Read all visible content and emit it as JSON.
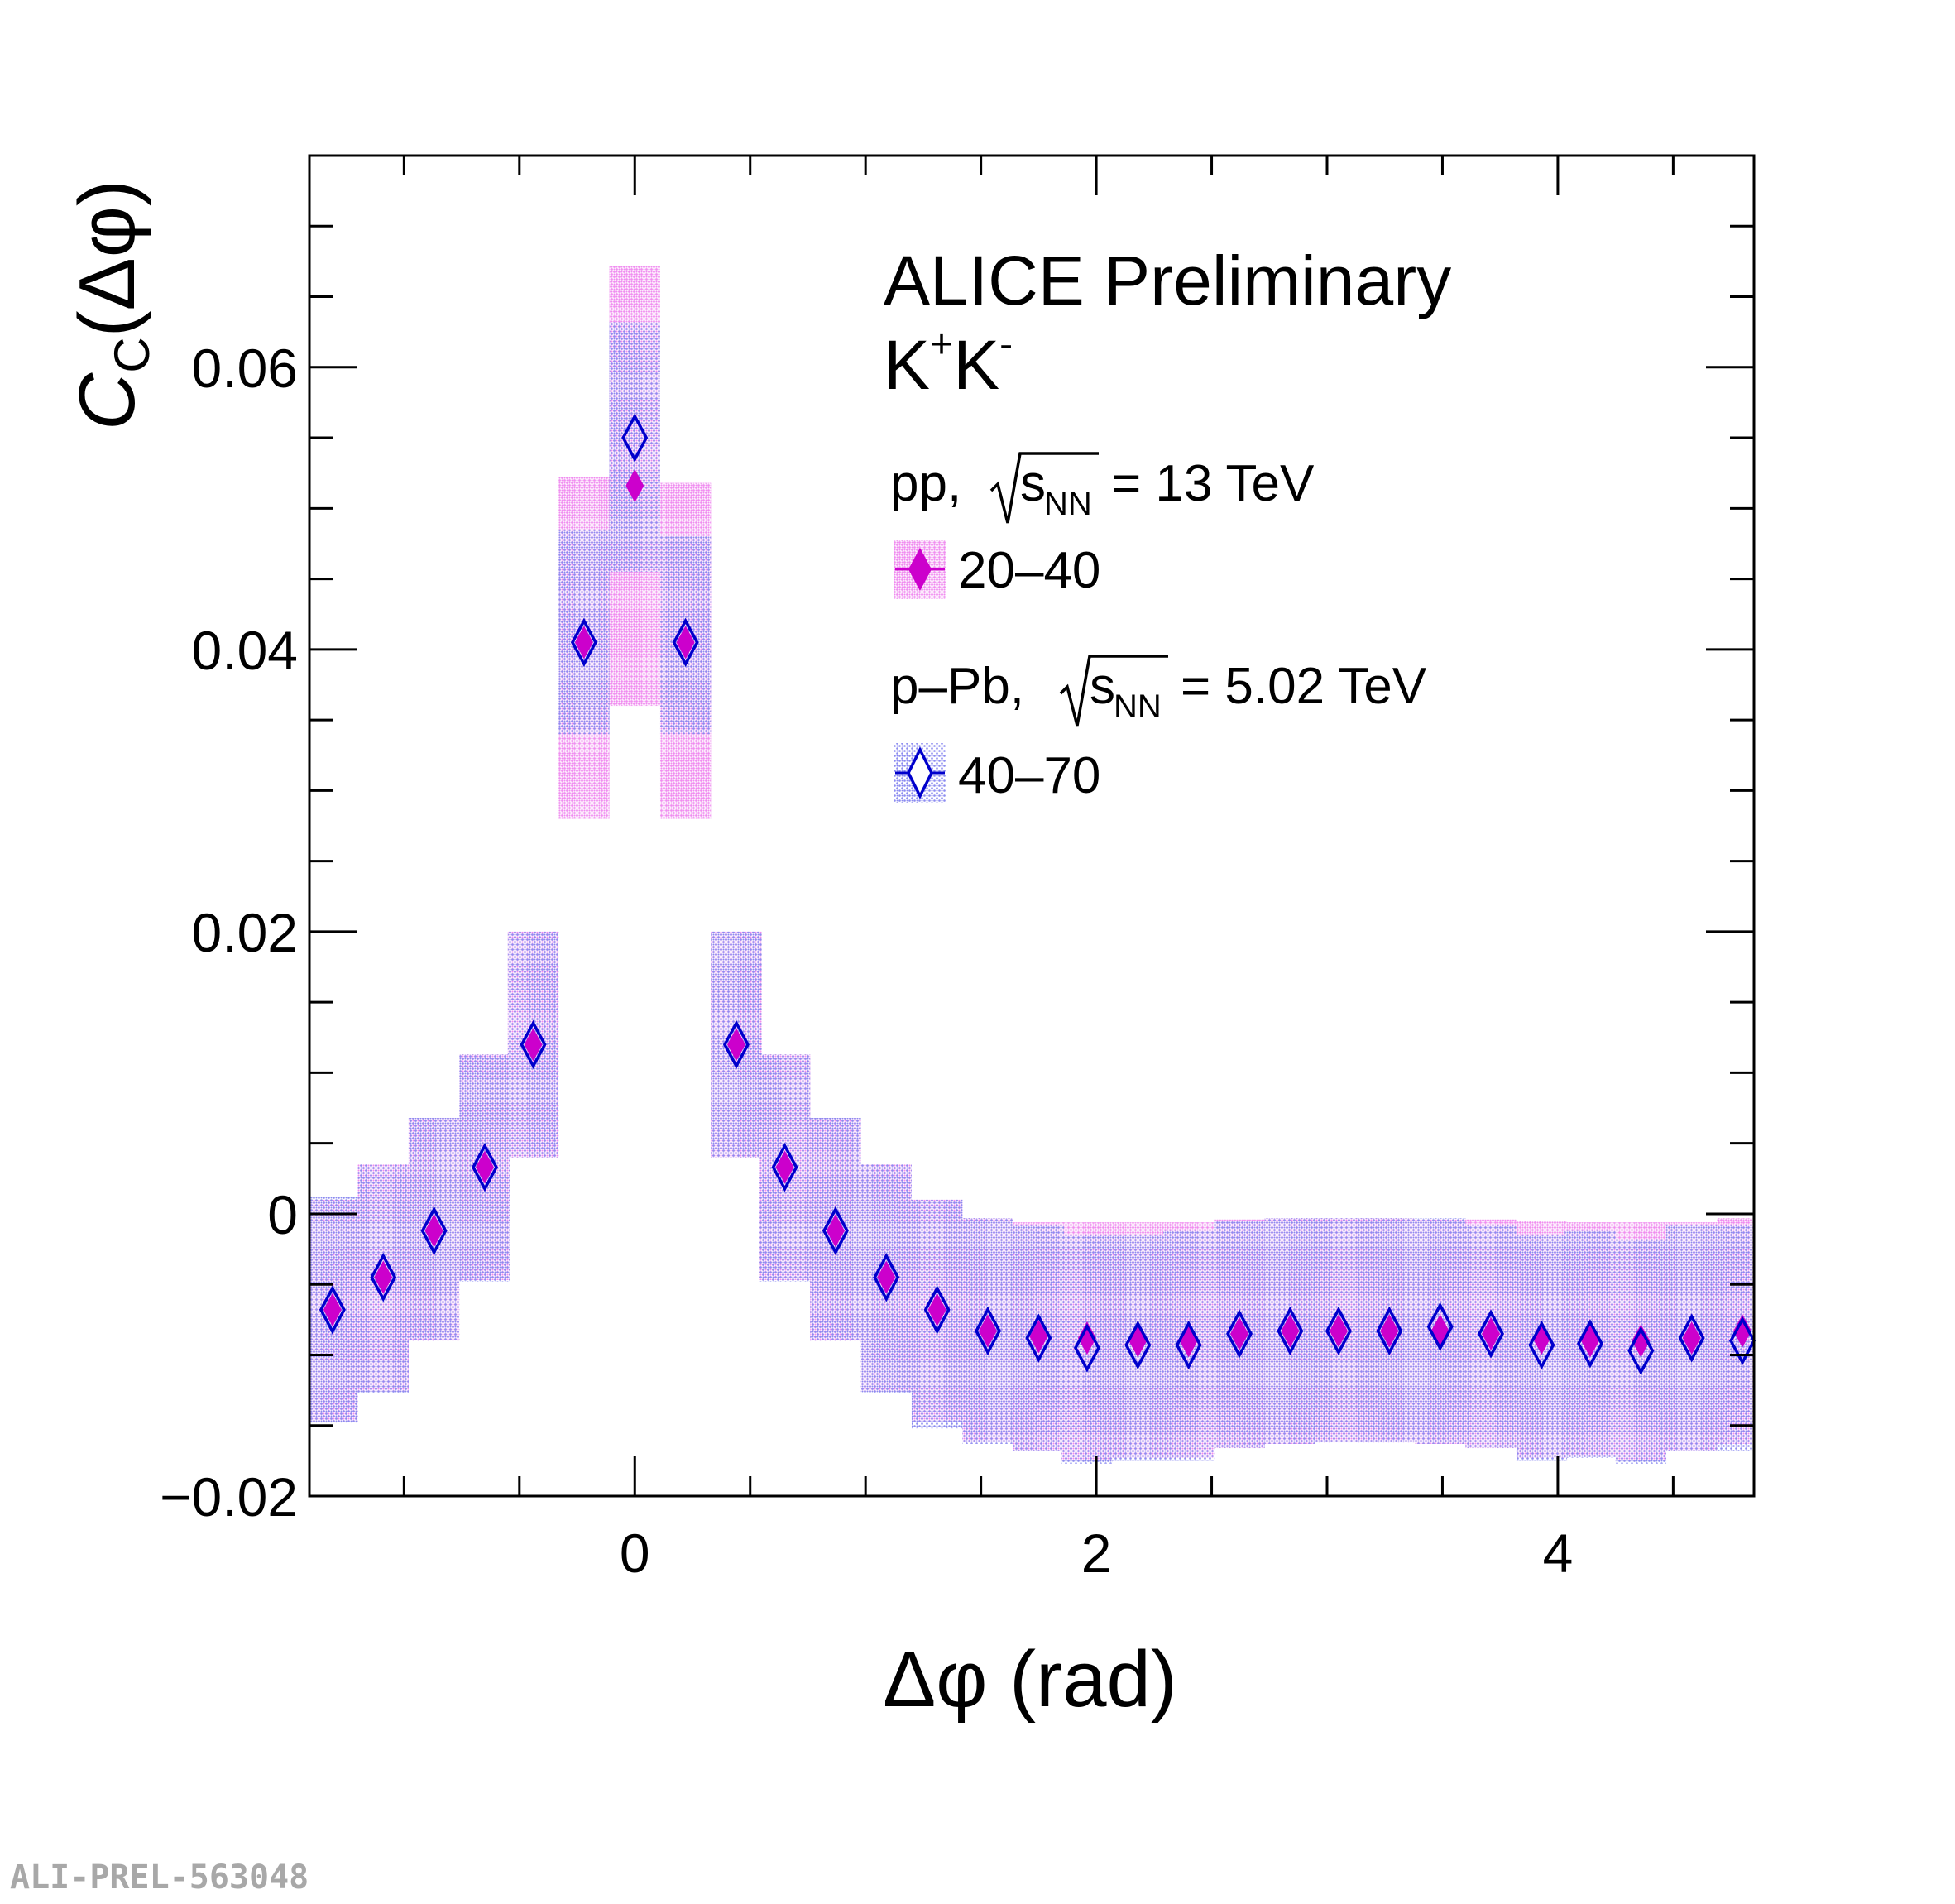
{
  "watermark": "ALI-PREL-563048",
  "colors": {
    "pp_fill": "#f08cf0",
    "pp_marker": "#cc00cc",
    "ppb_fill": "#8c8cf0",
    "ppb_marker": "#0000cc",
    "axis": "#000000"
  },
  "header": {
    "title": "ALICE Preliminary",
    "particle_base1": "K",
    "particle_sup1": "+",
    "particle_base2": "K",
    "particle_sup2": "-"
  },
  "legend": {
    "pp_system_prefix": "pp, ",
    "pp_energy_sub": "NN",
    "pp_energy_value": "= 13 TeV",
    "pp_entry": "20–40",
    "ppb_system_prefix": "p–Pb, ",
    "ppb_energy_sub": "NN",
    "ppb_energy_value": "= 5.02 TeV",
    "ppb_entry": "40–70",
    "sqrt_s": "s"
  },
  "chart_data": {
    "type": "scatter",
    "title": "",
    "xlabel": "Δφ (rad)",
    "ylabel_main": "C",
    "ylabel_sub": "C",
    "ylabel_rest": "(Δφ)",
    "xlim": [
      -1.41,
      4.85
    ],
    "ylim": [
      -0.02,
      0.075
    ],
    "x_ticks": [
      0,
      2,
      4
    ],
    "x_tick_labels": [
      "0",
      "2",
      "4"
    ],
    "y_ticks": [
      -0.02,
      0,
      0.02,
      0.04,
      0.06
    ],
    "y_tick_labels": [
      "−0.02",
      "0",
      "0.02",
      "0.04",
      "0.06"
    ],
    "x_minor_step": 0.5,
    "y_minor_step": 0.005,
    "series": [
      {
        "name": "pp, √sNN = 13 TeV, 20–40",
        "marker": "filled-diamond",
        "x": [
          -1.31,
          -1.09,
          -0.87,
          -0.65,
          -0.44,
          -0.22,
          0.0,
          0.22,
          0.44,
          0.65,
          0.87,
          1.09,
          1.31,
          1.53,
          1.75,
          1.96,
          2.18,
          2.4,
          2.62,
          2.84,
          3.05,
          3.27,
          3.49,
          3.71,
          3.93,
          4.14,
          4.36,
          4.58,
          4.8
        ],
        "y": [
          -0.0068,
          -0.0045,
          -0.0012,
          0.0033,
          0.012,
          0.0405,
          0.0516,
          0.0405,
          0.012,
          0.0033,
          -0.0012,
          -0.0045,
          -0.0068,
          -0.0083,
          -0.0087,
          -0.0088,
          -0.009,
          -0.009,
          -0.0085,
          -0.0083,
          -0.0083,
          -0.0083,
          -0.0083,
          -0.0085,
          -0.0088,
          -0.009,
          -0.009,
          -0.0088,
          -0.0083
        ],
        "sys_low": [
          -0.0147,
          -0.0126,
          -0.009,
          -0.0047,
          0.004,
          0.028,
          0.036,
          0.028,
          0.004,
          -0.0047,
          -0.009,
          -0.0126,
          -0.0147,
          -0.0162,
          -0.0168,
          -0.0175,
          -0.0173,
          -0.0173,
          -0.0166,
          -0.0163,
          -0.0162,
          -0.0162,
          -0.0163,
          -0.0166,
          -0.0173,
          -0.0172,
          -0.0175,
          -0.0168,
          -0.0163
        ],
        "sys_high": [
          0.001,
          0.0035,
          0.0068,
          0.0113,
          0.02,
          0.0522,
          0.0672,
          0.0518,
          0.02,
          0.0113,
          0.0068,
          0.0035,
          0.001,
          -0.0003,
          -0.0006,
          -0.0006,
          -0.0006,
          -0.0006,
          -0.0004,
          -0.0003,
          -0.0003,
          -0.0003,
          -0.0004,
          -0.0004,
          -0.0005,
          -0.0006,
          -0.0006,
          -0.0006,
          -0.0003
        ]
      },
      {
        "name": "p–Pb, √sNN = 5.02 TeV, 40–70",
        "marker": "open-diamond",
        "x": [
          -1.31,
          -1.09,
          -0.87,
          -0.65,
          -0.44,
          -0.22,
          0.0,
          0.22,
          0.44,
          0.65,
          0.87,
          1.09,
          1.31,
          1.53,
          1.75,
          1.96,
          2.18,
          2.4,
          2.62,
          2.84,
          3.05,
          3.27,
          3.49,
          3.71,
          3.93,
          4.14,
          4.36,
          4.58,
          4.8
        ],
        "y": [
          -0.0068,
          -0.0045,
          -0.0012,
          0.0033,
          0.012,
          0.0405,
          0.055,
          0.0405,
          0.012,
          0.0033,
          -0.0012,
          -0.0045,
          -0.0068,
          -0.0083,
          -0.0088,
          -0.0095,
          -0.0093,
          -0.0093,
          -0.0085,
          -0.0083,
          -0.0083,
          -0.0083,
          -0.008,
          -0.0085,
          -0.0093,
          -0.0092,
          -0.0097,
          -0.0088,
          -0.009
        ],
        "sys_low": [
          -0.0148,
          -0.0127,
          -0.009,
          -0.0048,
          0.004,
          0.034,
          0.0455,
          0.034,
          0.004,
          -0.0048,
          -0.009,
          -0.0127,
          -0.0152,
          -0.0163,
          -0.0168,
          -0.0177,
          -0.0175,
          -0.0175,
          -0.0166,
          -0.0163,
          -0.0162,
          -0.0162,
          -0.0163,
          -0.0166,
          -0.0175,
          -0.0173,
          -0.0177,
          -0.0168,
          -0.0168
        ],
        "sys_high": [
          0.0012,
          0.0035,
          0.0068,
          0.0113,
          0.02,
          0.0485,
          0.0632,
          0.048,
          0.02,
          0.0113,
          0.0068,
          0.0035,
          0.001,
          -0.0003,
          -0.0008,
          -0.0015,
          -0.0015,
          -0.0012,
          -0.0005,
          -0.0003,
          -0.0003,
          -0.0003,
          -0.0003,
          -0.0008,
          -0.0015,
          -0.0012,
          -0.0018,
          -0.0008,
          -0.0008
        ]
      }
    ]
  }
}
